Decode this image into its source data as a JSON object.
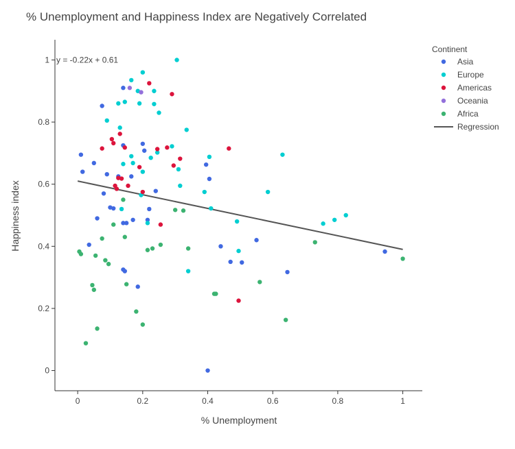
{
  "chart_data": {
    "type": "scatter",
    "title": "% Unemployment and Happiness Index are Negatively Correlated",
    "xlabel": "% Unemployment",
    "ylabel": "Happiness index",
    "xlim": [
      -0.07,
      1.06
    ],
    "ylim": [
      -0.065,
      1.065
    ],
    "x_ticks": [
      0,
      0.2,
      0.4,
      0.6,
      0.8,
      1
    ],
    "x_tick_labels": [
      "0",
      "0.2",
      "0.4",
      "0.6",
      "0.8",
      "1"
    ],
    "y_ticks": [
      0,
      0.2,
      0.4,
      0.6,
      0.8,
      1
    ],
    "y_tick_labels": [
      "0",
      "0.2",
      "0.4",
      "0.6",
      "0.8",
      "1"
    ],
    "grid": false,
    "legend": {
      "title": "Continent",
      "placement": "top-right"
    },
    "series": [
      {
        "name": "Asia",
        "color": "#4169E1",
        "points": [
          [
            0.01,
            0.695
          ],
          [
            0.015,
            0.64
          ],
          [
            0.035,
            0.405
          ],
          [
            0.05,
            0.668
          ],
          [
            0.06,
            0.49
          ],
          [
            0.075,
            0.852
          ],
          [
            0.08,
            0.57
          ],
          [
            0.09,
            0.632
          ],
          [
            0.1,
            0.525
          ],
          [
            0.11,
            0.522
          ],
          [
            0.125,
            0.625
          ],
          [
            0.14,
            0.91
          ],
          [
            0.14,
            0.725
          ],
          [
            0.14,
            0.475
          ],
          [
            0.14,
            0.325
          ],
          [
            0.145,
            0.32
          ],
          [
            0.15,
            0.475
          ],
          [
            0.165,
            0.625
          ],
          [
            0.17,
            0.485
          ],
          [
            0.185,
            0.27
          ],
          [
            0.2,
            0.73
          ],
          [
            0.205,
            0.708
          ],
          [
            0.215,
            0.485
          ],
          [
            0.22,
            0.52
          ],
          [
            0.24,
            0.578
          ],
          [
            0.395,
            0.663
          ],
          [
            0.4,
            0.0
          ],
          [
            0.405,
            0.617
          ],
          [
            0.44,
            0.4
          ],
          [
            0.47,
            0.35
          ],
          [
            0.505,
            0.348
          ],
          [
            0.55,
            0.42
          ],
          [
            0.645,
            0.317
          ],
          [
            0.945,
            0.383
          ]
        ]
      },
      {
        "name": "Europe",
        "color": "#00CED1",
        "points": [
          [
            0.09,
            0.805
          ],
          [
            0.125,
            0.86
          ],
          [
            0.13,
            0.782
          ],
          [
            0.135,
            0.52
          ],
          [
            0.14,
            0.665
          ],
          [
            0.145,
            0.865
          ],
          [
            0.165,
            0.935
          ],
          [
            0.165,
            0.69
          ],
          [
            0.17,
            0.668
          ],
          [
            0.185,
            0.9
          ],
          [
            0.19,
            0.86
          ],
          [
            0.195,
            0.565
          ],
          [
            0.2,
            0.96
          ],
          [
            0.2,
            0.64
          ],
          [
            0.215,
            0.475
          ],
          [
            0.225,
            0.685
          ],
          [
            0.235,
            0.9
          ],
          [
            0.235,
            0.858
          ],
          [
            0.245,
            0.702
          ],
          [
            0.25,
            0.83
          ],
          [
            0.29,
            0.722
          ],
          [
            0.305,
            1.0
          ],
          [
            0.31,
            0.648
          ],
          [
            0.315,
            0.595
          ],
          [
            0.335,
            0.775
          ],
          [
            0.34,
            0.32
          ],
          [
            0.39,
            0.575
          ],
          [
            0.405,
            0.688
          ],
          [
            0.41,
            0.522
          ],
          [
            0.49,
            0.48
          ],
          [
            0.495,
            0.385
          ],
          [
            0.585,
            0.575
          ],
          [
            0.63,
            0.695
          ],
          [
            0.755,
            0.473
          ],
          [
            0.79,
            0.485
          ],
          [
            0.825,
            0.5
          ]
        ]
      },
      {
        "name": "Americas",
        "color": "#DC143C",
        "points": [
          [
            0.075,
            0.715
          ],
          [
            0.105,
            0.745
          ],
          [
            0.11,
            0.732
          ],
          [
            0.115,
            0.595
          ],
          [
            0.12,
            0.585
          ],
          [
            0.125,
            0.62
          ],
          [
            0.13,
            0.762
          ],
          [
            0.135,
            0.618
          ],
          [
            0.145,
            0.718
          ],
          [
            0.155,
            0.595
          ],
          [
            0.19,
            0.655
          ],
          [
            0.2,
            0.575
          ],
          [
            0.22,
            0.925
          ],
          [
            0.245,
            0.713
          ],
          [
            0.255,
            0.47
          ],
          [
            0.275,
            0.718
          ],
          [
            0.29,
            0.89
          ],
          [
            0.295,
            0.66
          ],
          [
            0.315,
            0.682
          ],
          [
            0.465,
            0.715
          ],
          [
            0.495,
            0.225
          ]
        ]
      },
      {
        "name": "Oceania",
        "color": "#9370DB",
        "points": [
          [
            0.16,
            0.91
          ],
          [
            0.195,
            0.896
          ]
        ]
      },
      {
        "name": "Africa",
        "color": "#3CB371",
        "points": [
          [
            0.005,
            0.383
          ],
          [
            0.01,
            0.375
          ],
          [
            0.025,
            0.088
          ],
          [
            0.045,
            0.275
          ],
          [
            0.05,
            0.26
          ],
          [
            0.055,
            0.37
          ],
          [
            0.06,
            0.135
          ],
          [
            0.075,
            0.425
          ],
          [
            0.085,
            0.355
          ],
          [
            0.095,
            0.343
          ],
          [
            0.11,
            0.47
          ],
          [
            0.14,
            0.55
          ],
          [
            0.145,
            0.43
          ],
          [
            0.15,
            0.278
          ],
          [
            0.18,
            0.19
          ],
          [
            0.2,
            0.148
          ],
          [
            0.215,
            0.388
          ],
          [
            0.23,
            0.393
          ],
          [
            0.255,
            0.405
          ],
          [
            0.3,
            0.517
          ],
          [
            0.325,
            0.515
          ],
          [
            0.34,
            0.393
          ],
          [
            0.42,
            0.247
          ],
          [
            0.425,
            0.247
          ],
          [
            0.56,
            0.285
          ],
          [
            0.64,
            0.163
          ],
          [
            0.73,
            0.413
          ],
          [
            1.0,
            0.36
          ]
        ]
      }
    ],
    "regression": {
      "name": "Regression",
      "color": "#555555",
      "equation_label": "y = -0.22x + 0.61",
      "slope": -0.22,
      "intercept": 0.61,
      "x_range": [
        0,
        1
      ]
    }
  }
}
